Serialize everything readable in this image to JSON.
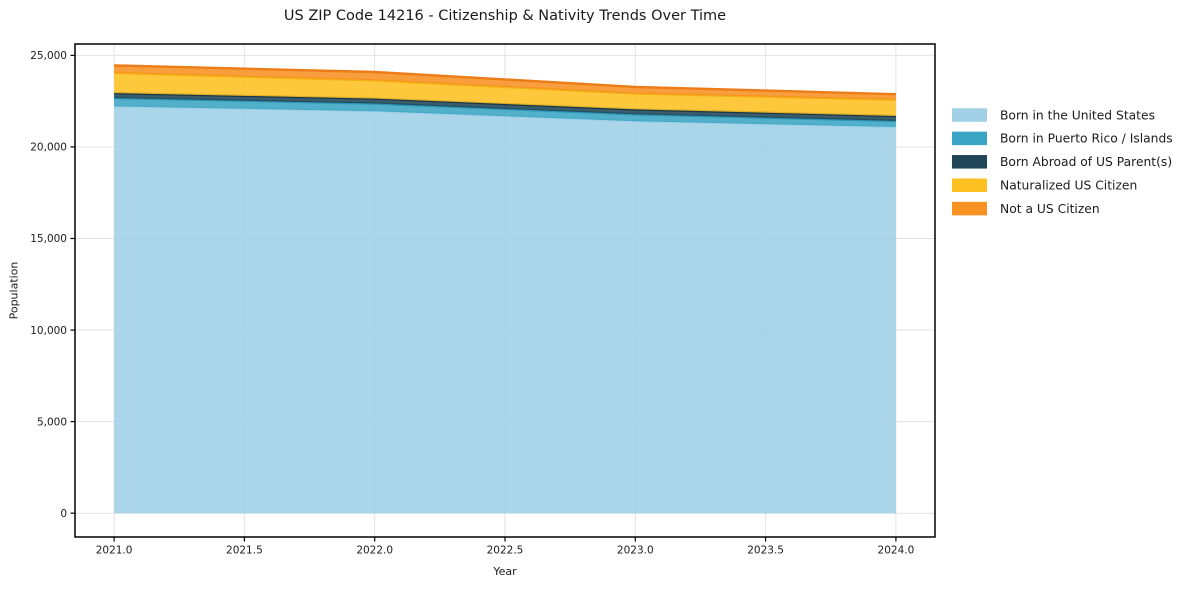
{
  "page": {
    "background": "#ffffff",
    "text_color": "#1c1c1c",
    "grid_color": "#e2e2e2",
    "frame_color": "#000000"
  },
  "chart": {
    "title": "US ZIP Code 14216 - Citizenship & Nativity Trends Over Time",
    "xlabel": "Year",
    "ylabel": "Population"
  },
  "chart_data": {
    "type": "area",
    "stacked": true,
    "title": "US ZIP Code 14216 - Citizenship & Nativity Trends Over Time",
    "xlabel": "Year",
    "ylabel": "Population",
    "x": [
      2021,
      2022,
      2023,
      2024
    ],
    "series": [
      {
        "name": "Born in the United States",
        "color": "#9fd0e6",
        "edge": "#9fd0e6",
        "values": [
          22210,
          21950,
          21400,
          21090
        ]
      },
      {
        "name": "Born in Puerto Rico / Islands",
        "color": "#3aa5c4",
        "edge": "#2e93b4",
        "values": [
          460,
          420,
          380,
          330
        ]
      },
      {
        "name": "Born Abroad of US Parent(s)",
        "color": "#1f4557",
        "edge": "#15374a",
        "values": [
          270,
          270,
          270,
          270
        ]
      },
      {
        "name": "Naturalized US Citizen",
        "color": "#fdc021",
        "edge": "#f3b114",
        "values": [
          1100,
          1000,
          860,
          890
        ]
      },
      {
        "name": "Not a US Citizen",
        "color": "#f79122",
        "edge": "#ec7c18",
        "values": [
          410,
          450,
          370,
          300
        ]
      }
    ],
    "totals": [
      24450,
      24090,
      23280,
      22880
    ],
    "xlim": [
      2020.85,
      2024.15
    ],
    "ylim": [
      -1300,
      25620
    ],
    "xticks": [
      2021.0,
      2021.5,
      2022.0,
      2022.5,
      2023.0,
      2023.5,
      2024.0
    ],
    "xtick_labels": [
      "2021.0",
      "2021.5",
      "2022.0",
      "2022.5",
      "2023.0",
      "2023.5",
      "2024.0"
    ],
    "yticks": [
      0,
      5000,
      10000,
      15000,
      20000,
      25000
    ],
    "ytick_labels": [
      "0",
      "5,000",
      "10,000",
      "15,000",
      "20,000",
      "25,000"
    ],
    "grid": true,
    "legend_position": "right",
    "legend_labels": [
      "Born in the United States",
      "Born in Puerto Rico / Islands",
      "Born Abroad of US Parent(s)",
      "Naturalized US Citizen",
      "Not a US Citizen"
    ]
  }
}
